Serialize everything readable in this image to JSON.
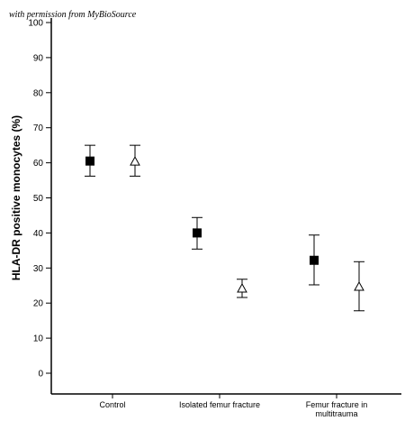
{
  "watermark": "with permission from MyBioSource",
  "chart_data": {
    "type": "scatter",
    "title": "",
    "xlabel": "",
    "ylabel": "HLA-DR positive monocytes (%)",
    "ylim": [
      0,
      100
    ],
    "yticks": [
      0,
      10,
      20,
      30,
      40,
      50,
      60,
      70,
      80,
      90,
      100
    ],
    "categories": [
      [
        "Control"
      ],
      [
        "Isolated femur fracture"
      ],
      [
        "Femur fracture in",
        "multitrauma"
      ]
    ],
    "grid": false,
    "legend": "none",
    "series": [
      {
        "marker": "filled-square",
        "values": [
          60.5,
          40,
          32.2
        ],
        "error_low": [
          56.2,
          35.4,
          25.2
        ],
        "error_high": [
          65,
          44.4,
          39.4
        ]
      },
      {
        "marker": "open-triangle",
        "values": [
          60.5,
          24.3,
          24.8
        ],
        "error_low": [
          56.2,
          21.6,
          17.8
        ],
        "error_high": [
          65,
          26.8,
          31.8
        ]
      }
    ]
  }
}
